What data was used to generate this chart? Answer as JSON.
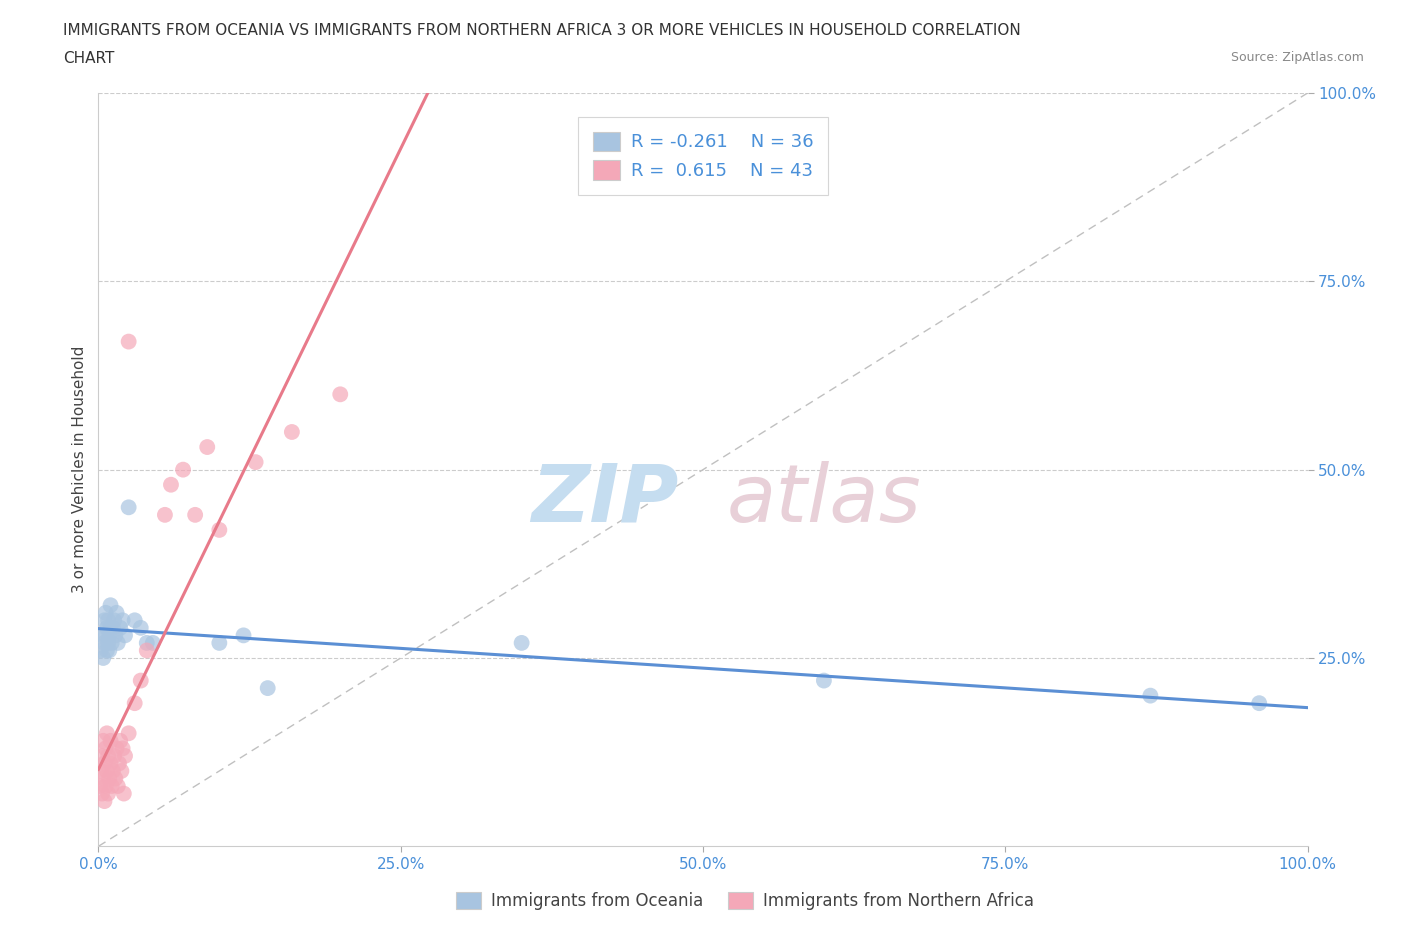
{
  "title_line1": "IMMIGRANTS FROM OCEANIA VS IMMIGRANTS FROM NORTHERN AFRICA 3 OR MORE VEHICLES IN HOUSEHOLD CORRELATION",
  "title_line2": "CHART",
  "source_text": "Source: ZipAtlas.com",
  "ylabel": "3 or more Vehicles in Household",
  "x_min": 0.0,
  "x_max": 1.0,
  "y_min": 0.0,
  "y_max": 1.0,
  "x_ticks": [
    0.0,
    0.25,
    0.5,
    0.75,
    1.0
  ],
  "x_tick_labels": [
    "0.0%",
    "25.0%",
    "50.0%",
    "75.0%",
    "100.0%"
  ],
  "y_ticks": [
    0.25,
    0.5,
    0.75,
    1.0
  ],
  "y_tick_labels": [
    "25.0%",
    "50.0%",
    "75.0%",
    "100.0%"
  ],
  "oceania_color": "#a8c4e0",
  "northern_africa_color": "#f4a8b8",
  "oceania_R": -0.261,
  "oceania_N": 36,
  "northern_africa_R": 0.615,
  "northern_africa_N": 43,
  "legend_label_oceania": "Immigrants from Oceania",
  "legend_label_northern_africa": "Immigrants from Northern Africa",
  "background_color": "#ffffff",
  "grid_color": "#cccccc",
  "axis_color": "#4a90d9",
  "oceania_line_color": "#5b8fd4",
  "northern_africa_line_color": "#e87a8a",
  "ref_line_color": "#c0c0c0",
  "oceania_x": [
    0.002,
    0.003,
    0.004,
    0.005,
    0.005,
    0.006,
    0.006,
    0.007,
    0.007,
    0.008,
    0.008,
    0.009,
    0.009,
    0.01,
    0.01,
    0.011,
    0.012,
    0.013,
    0.014,
    0.015,
    0.016,
    0.018,
    0.02,
    0.022,
    0.025,
    0.03,
    0.035,
    0.04,
    0.045,
    0.1,
    0.12,
    0.14,
    0.35,
    0.6,
    0.87,
    0.96
  ],
  "oceania_y": [
    0.26,
    0.28,
    0.25,
    0.3,
    0.27,
    0.28,
    0.31,
    0.26,
    0.29,
    0.27,
    0.3,
    0.28,
    0.26,
    0.29,
    0.32,
    0.27,
    0.29,
    0.3,
    0.28,
    0.31,
    0.27,
    0.29,
    0.3,
    0.28,
    0.45,
    0.3,
    0.29,
    0.27,
    0.27,
    0.27,
    0.28,
    0.21,
    0.27,
    0.22,
    0.2,
    0.19
  ],
  "northern_africa_x": [
    0.001,
    0.002,
    0.003,
    0.003,
    0.004,
    0.004,
    0.005,
    0.005,
    0.006,
    0.006,
    0.007,
    0.007,
    0.008,
    0.008,
    0.009,
    0.01,
    0.01,
    0.011,
    0.012,
    0.013,
    0.014,
    0.015,
    0.016,
    0.017,
    0.018,
    0.019,
    0.02,
    0.021,
    0.022,
    0.025,
    0.03,
    0.035,
    0.04,
    0.055,
    0.06,
    0.07,
    0.08,
    0.09,
    0.1,
    0.13,
    0.16,
    0.2,
    0.025
  ],
  "northern_africa_y": [
    0.08,
    0.1,
    0.07,
    0.12,
    0.09,
    0.14,
    0.06,
    0.11,
    0.08,
    0.13,
    0.1,
    0.15,
    0.07,
    0.12,
    0.09,
    0.11,
    0.14,
    0.08,
    0.1,
    0.12,
    0.09,
    0.13,
    0.08,
    0.11,
    0.14,
    0.1,
    0.13,
    0.07,
    0.12,
    0.15,
    0.19,
    0.22,
    0.26,
    0.44,
    0.48,
    0.5,
    0.44,
    0.53,
    0.42,
    0.51,
    0.55,
    0.6,
    0.67
  ]
}
